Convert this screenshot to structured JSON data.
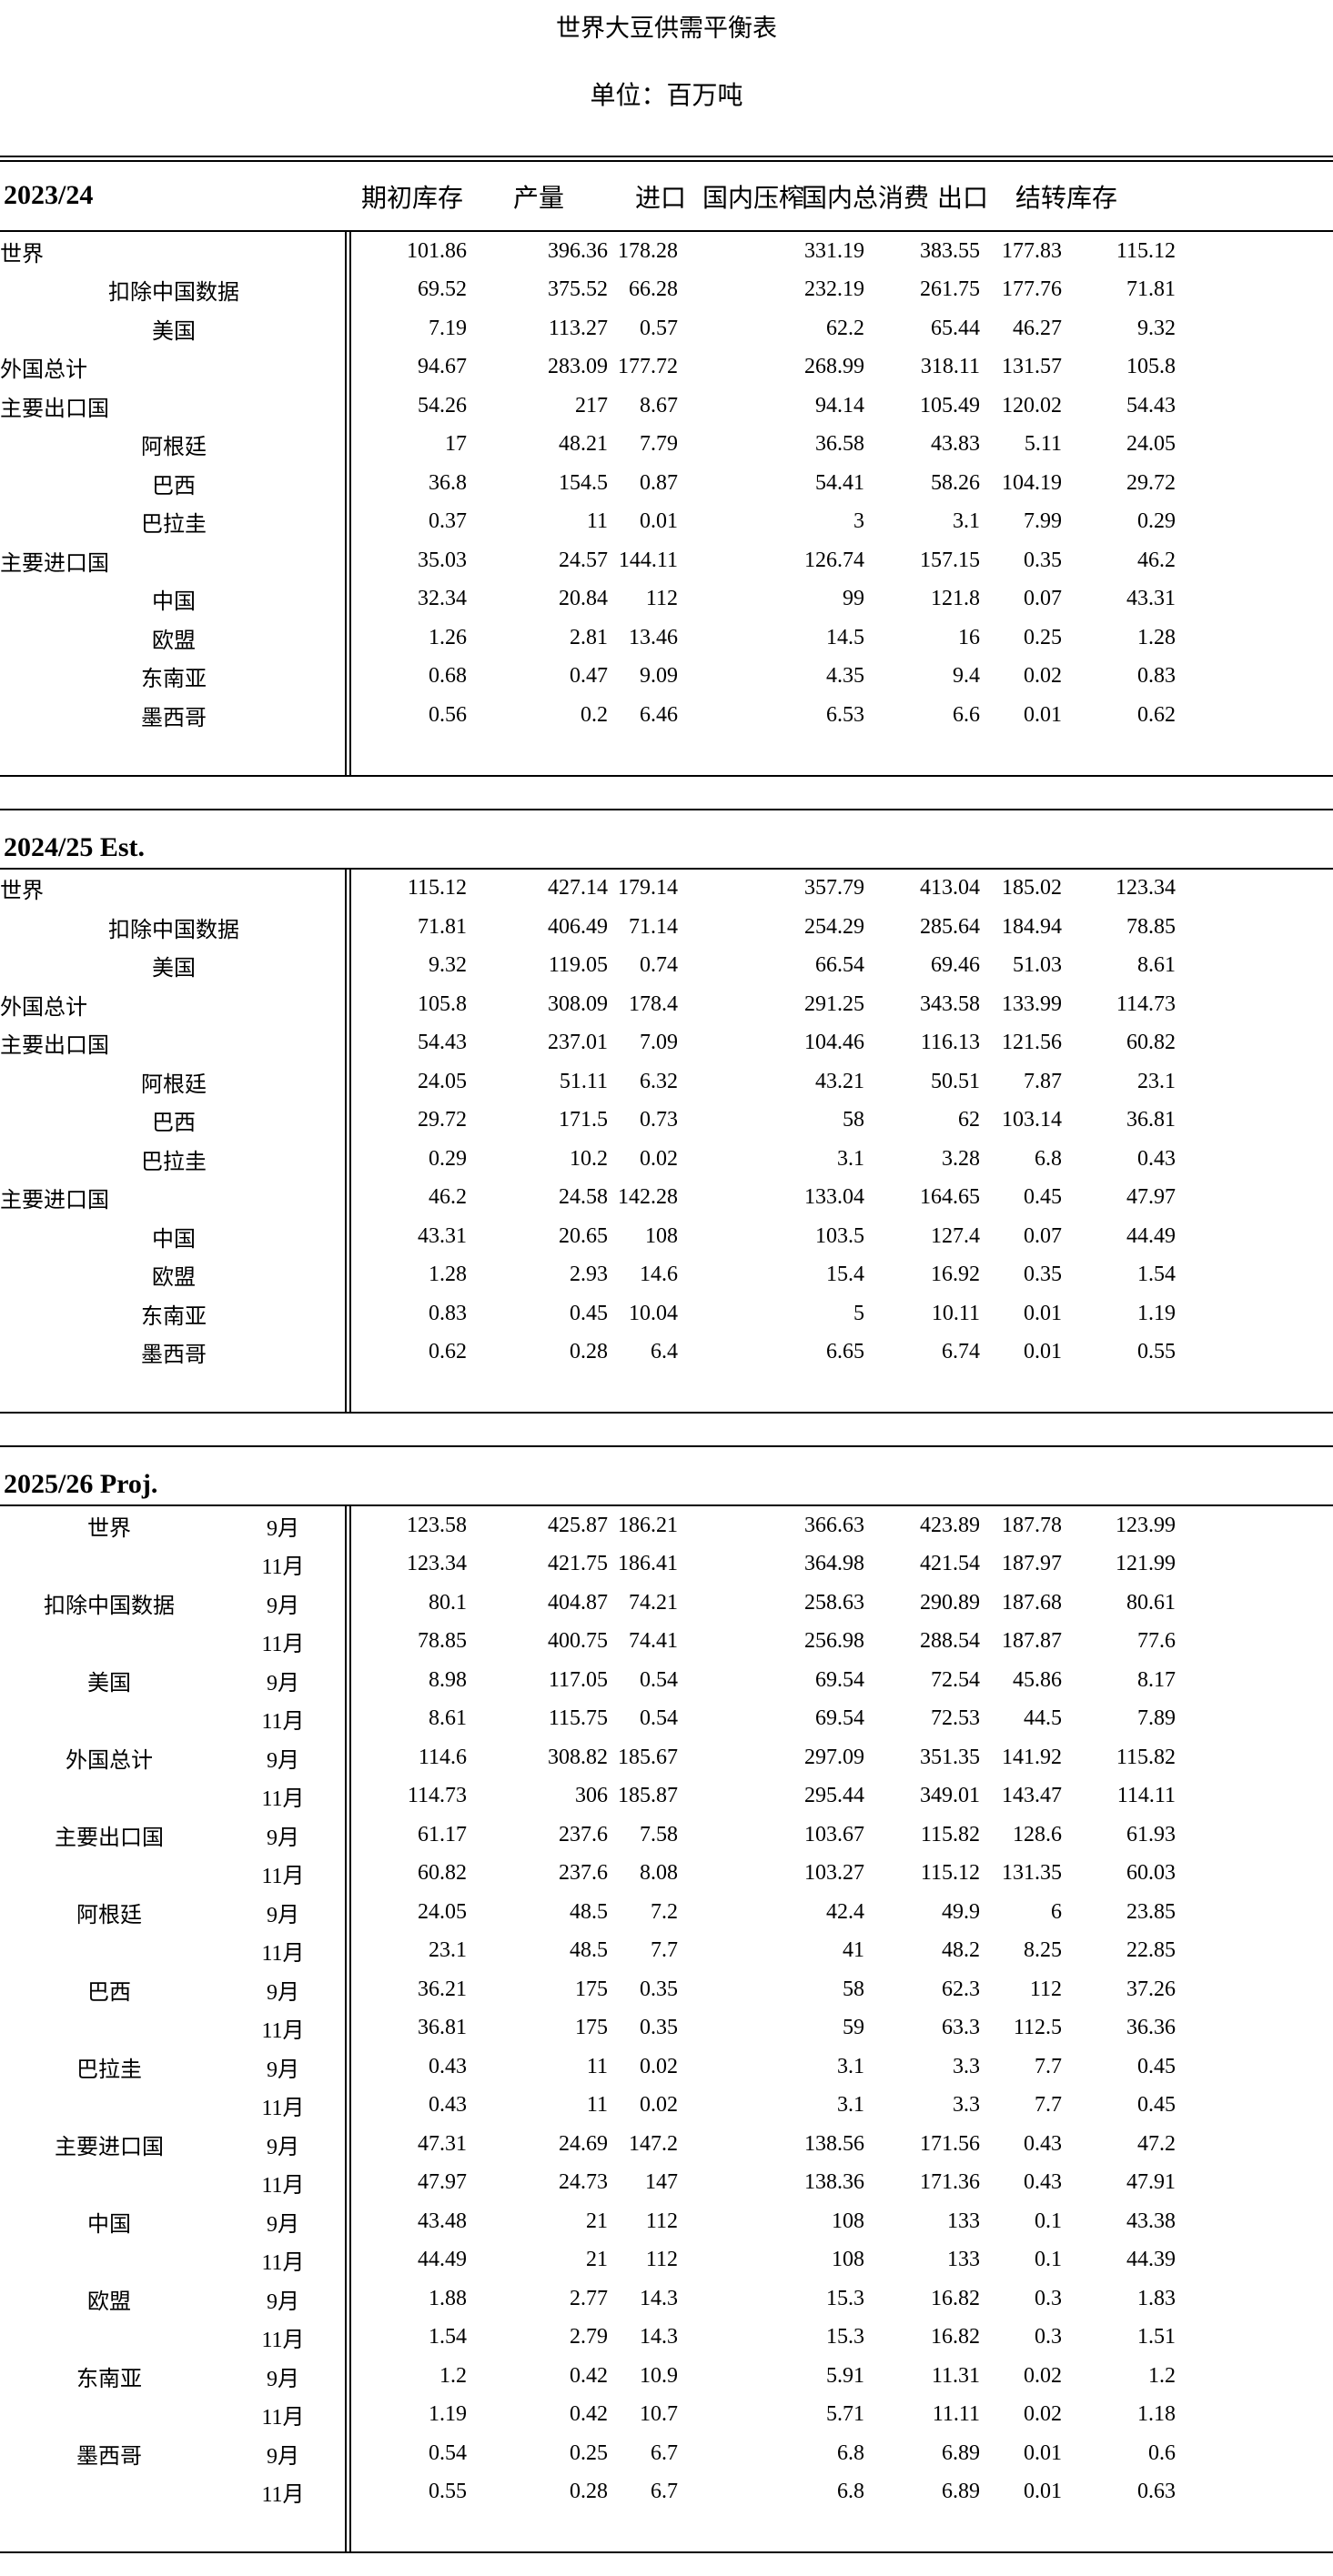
{
  "title": "世界大豆供需平衡表",
  "unit": "单位：百万吨",
  "columns": [
    "期初库存",
    "产量",
    "进口",
    "国内压榨",
    "国内总消费",
    "出口",
    "结转库存"
  ],
  "sections": [
    {
      "label": "2023/24",
      "show_columns": true,
      "rows": [
        {
          "label": "世界",
          "style": "group",
          "values": [
            "101.86",
            "396.36",
            "178.28",
            "331.19",
            "383.55",
            "177.83",
            "115.12"
          ]
        },
        {
          "label": "扣除中国数据",
          "style": "sub",
          "values": [
            "69.52",
            "375.52",
            "66.28",
            "232.19",
            "261.75",
            "177.76",
            "71.81"
          ]
        },
        {
          "label": "美国",
          "style": "sub",
          "values": [
            "7.19",
            "113.27",
            "0.57",
            "62.2",
            "65.44",
            "46.27",
            "9.32"
          ]
        },
        {
          "label": "外国总计",
          "style": "group",
          "values": [
            "94.67",
            "283.09",
            "177.72",
            "268.99",
            "318.11",
            "131.57",
            "105.8"
          ]
        },
        {
          "label": "主要出口国",
          "style": "group",
          "values": [
            "54.26",
            "217",
            "8.67",
            "94.14",
            "105.49",
            "120.02",
            "54.43"
          ]
        },
        {
          "label": "阿根廷",
          "style": "sub",
          "values": [
            "17",
            "48.21",
            "7.79",
            "36.58",
            "43.83",
            "5.11",
            "24.05"
          ]
        },
        {
          "label": "巴西",
          "style": "sub",
          "values": [
            "36.8",
            "154.5",
            "0.87",
            "54.41",
            "58.26",
            "104.19",
            "29.72"
          ]
        },
        {
          "label": "巴拉圭",
          "style": "sub",
          "values": [
            "0.37",
            "11",
            "0.01",
            "3",
            "3.1",
            "7.99",
            "0.29"
          ]
        },
        {
          "label": "主要进口国",
          "style": "group",
          "values": [
            "35.03",
            "24.57",
            "144.11",
            "126.74",
            "157.15",
            "0.35",
            "46.2"
          ]
        },
        {
          "label": "中国",
          "style": "sub",
          "values": [
            "32.34",
            "20.84",
            "112",
            "99",
            "121.8",
            "0.07",
            "43.31"
          ]
        },
        {
          "label": "欧盟",
          "style": "sub",
          "values": [
            "1.26",
            "2.81",
            "13.46",
            "14.5",
            "16",
            "0.25",
            "1.28"
          ]
        },
        {
          "label": "东南亚",
          "style": "sub",
          "values": [
            "0.68",
            "0.47",
            "9.09",
            "4.35",
            "9.4",
            "0.02",
            "0.83"
          ]
        },
        {
          "label": "墨西哥",
          "style": "sub",
          "values": [
            "0.56",
            "0.2",
            "6.46",
            "6.53",
            "6.6",
            "0.01",
            "0.62"
          ]
        }
      ]
    },
    {
      "label": "2024/25 Est.",
      "show_columns": false,
      "rows": [
        {
          "label": "世界",
          "style": "group",
          "values": [
            "115.12",
            "427.14",
            "179.14",
            "357.79",
            "413.04",
            "185.02",
            "123.34"
          ]
        },
        {
          "label": "扣除中国数据",
          "style": "sub",
          "values": [
            "71.81",
            "406.49",
            "71.14",
            "254.29",
            "285.64",
            "184.94",
            "78.85"
          ]
        },
        {
          "label": "美国",
          "style": "sub",
          "values": [
            "9.32",
            "119.05",
            "0.74",
            "66.54",
            "69.46",
            "51.03",
            "8.61"
          ]
        },
        {
          "label": "外国总计",
          "style": "group",
          "values": [
            "105.8",
            "308.09",
            "178.4",
            "291.25",
            "343.58",
            "133.99",
            "114.73"
          ]
        },
        {
          "label": "主要出口国",
          "style": "group",
          "values": [
            "54.43",
            "237.01",
            "7.09",
            "104.46",
            "116.13",
            "121.56",
            "60.82"
          ]
        },
        {
          "label": "阿根廷",
          "style": "sub",
          "values": [
            "24.05",
            "51.11",
            "6.32",
            "43.21",
            "50.51",
            "7.87",
            "23.1"
          ]
        },
        {
          "label": "巴西",
          "style": "sub",
          "values": [
            "29.72",
            "171.5",
            "0.73",
            "58",
            "62",
            "103.14",
            "36.81"
          ]
        },
        {
          "label": "巴拉圭",
          "style": "sub",
          "values": [
            "0.29",
            "10.2",
            "0.02",
            "3.1",
            "3.28",
            "6.8",
            "0.43"
          ]
        },
        {
          "label": "主要进口国",
          "style": "group",
          "values": [
            "46.2",
            "24.58",
            "142.28",
            "133.04",
            "164.65",
            "0.45",
            "47.97"
          ]
        },
        {
          "label": "中国",
          "style": "sub",
          "values": [
            "43.31",
            "20.65",
            "108",
            "103.5",
            "127.4",
            "0.07",
            "44.49"
          ]
        },
        {
          "label": "欧盟",
          "style": "sub",
          "values": [
            "1.28",
            "2.93",
            "14.6",
            "15.4",
            "16.92",
            "0.35",
            "1.54"
          ]
        },
        {
          "label": "东南亚",
          "style": "sub",
          "values": [
            "0.83",
            "0.45",
            "10.04",
            "5",
            "10.11",
            "0.01",
            "1.19"
          ]
        },
        {
          "label": "墨西哥",
          "style": "sub",
          "values": [
            "0.62",
            "0.28",
            "6.4",
            "6.65",
            "6.74",
            "0.01",
            "0.55"
          ]
        }
      ]
    },
    {
      "label": "2025/26 Proj.",
      "show_columns": false,
      "has_months": true,
      "rows": [
        {
          "label": "世界",
          "month": "9月",
          "values": [
            "123.58",
            "425.87",
            "186.21",
            "366.63",
            "423.89",
            "187.78",
            "123.99"
          ]
        },
        {
          "label": "",
          "month": "11月",
          "values": [
            "123.34",
            "421.75",
            "186.41",
            "364.98",
            "421.54",
            "187.97",
            "121.99"
          ]
        },
        {
          "label": "扣除中国数据",
          "month": "9月",
          "values": [
            "80.1",
            "404.87",
            "74.21",
            "258.63",
            "290.89",
            "187.68",
            "80.61"
          ]
        },
        {
          "label": "",
          "month": "11月",
          "values": [
            "78.85",
            "400.75",
            "74.41",
            "256.98",
            "288.54",
            "187.87",
            "77.6"
          ]
        },
        {
          "label": "美国",
          "month": "9月",
          "values": [
            "8.98",
            "117.05",
            "0.54",
            "69.54",
            "72.54",
            "45.86",
            "8.17"
          ]
        },
        {
          "label": "",
          "month": "11月",
          "values": [
            "8.61",
            "115.75",
            "0.54",
            "69.54",
            "72.53",
            "44.5",
            "7.89"
          ]
        },
        {
          "label": "外国总计",
          "month": "9月",
          "values": [
            "114.6",
            "308.82",
            "185.67",
            "297.09",
            "351.35",
            "141.92",
            "115.82"
          ]
        },
        {
          "label": "",
          "month": "11月",
          "values": [
            "114.73",
            "306",
            "185.87",
            "295.44",
            "349.01",
            "143.47",
            "114.11"
          ]
        },
        {
          "label": "主要出口国",
          "month": "9月",
          "values": [
            "61.17",
            "237.6",
            "7.58",
            "103.67",
            "115.82",
            "128.6",
            "61.93"
          ]
        },
        {
          "label": "",
          "month": "11月",
          "values": [
            "60.82",
            "237.6",
            "8.08",
            "103.27",
            "115.12",
            "131.35",
            "60.03"
          ]
        },
        {
          "label": "阿根廷",
          "month": "9月",
          "values": [
            "24.05",
            "48.5",
            "7.2",
            "42.4",
            "49.9",
            "6",
            "23.85"
          ]
        },
        {
          "label": "",
          "month": "11月",
          "values": [
            "23.1",
            "48.5",
            "7.7",
            "41",
            "48.2",
            "8.25",
            "22.85"
          ]
        },
        {
          "label": "巴西",
          "month": "9月",
          "values": [
            "36.21",
            "175",
            "0.35",
            "58",
            "62.3",
            "112",
            "37.26"
          ]
        },
        {
          "label": "",
          "month": "11月",
          "values": [
            "36.81",
            "175",
            "0.35",
            "59",
            "63.3",
            "112.5",
            "36.36"
          ]
        },
        {
          "label": "巴拉圭",
          "month": "9月",
          "values": [
            "0.43",
            "11",
            "0.02",
            "3.1",
            "3.3",
            "7.7",
            "0.45"
          ]
        },
        {
          "label": "",
          "month": "11月",
          "values": [
            "0.43",
            "11",
            "0.02",
            "3.1",
            "3.3",
            "7.7",
            "0.45"
          ]
        },
        {
          "label": "主要进口国",
          "month": "9月",
          "values": [
            "47.31",
            "24.69",
            "147.2",
            "138.56",
            "171.56",
            "0.43",
            "47.2"
          ]
        },
        {
          "label": "",
          "month": "11月",
          "values": [
            "47.97",
            "24.73",
            "147",
            "138.36",
            "171.36",
            "0.43",
            "47.91"
          ]
        },
        {
          "label": "中国",
          "month": "9月",
          "values": [
            "43.48",
            "21",
            "112",
            "108",
            "133",
            "0.1",
            "43.38"
          ]
        },
        {
          "label": "",
          "month": "11月",
          "values": [
            "44.49",
            "21",
            "112",
            "108",
            "133",
            "0.1",
            "44.39"
          ]
        },
        {
          "label": "欧盟",
          "month": "9月",
          "values": [
            "1.88",
            "2.77",
            "14.3",
            "15.3",
            "16.82",
            "0.3",
            "1.83"
          ]
        },
        {
          "label": "",
          "month": "11月",
          "values": [
            "1.54",
            "2.79",
            "14.3",
            "15.3",
            "16.82",
            "0.3",
            "1.51"
          ]
        },
        {
          "label": "东南亚",
          "month": "9月",
          "values": [
            "1.2",
            "0.42",
            "10.9",
            "5.91",
            "11.31",
            "0.02",
            "1.2"
          ]
        },
        {
          "label": "",
          "month": "11月",
          "values": [
            "1.19",
            "0.42",
            "10.7",
            "5.71",
            "11.11",
            "0.02",
            "1.18"
          ]
        },
        {
          "label": "墨西哥",
          "month": "9月",
          "values": [
            "0.54",
            "0.25",
            "6.7",
            "6.8",
            "6.89",
            "0.01",
            "0.6"
          ]
        },
        {
          "label": "",
          "month": "11月",
          "values": [
            "0.55",
            "0.28",
            "6.7",
            "6.8",
            "6.89",
            "0.01",
            "0.63"
          ]
        }
      ]
    }
  ]
}
